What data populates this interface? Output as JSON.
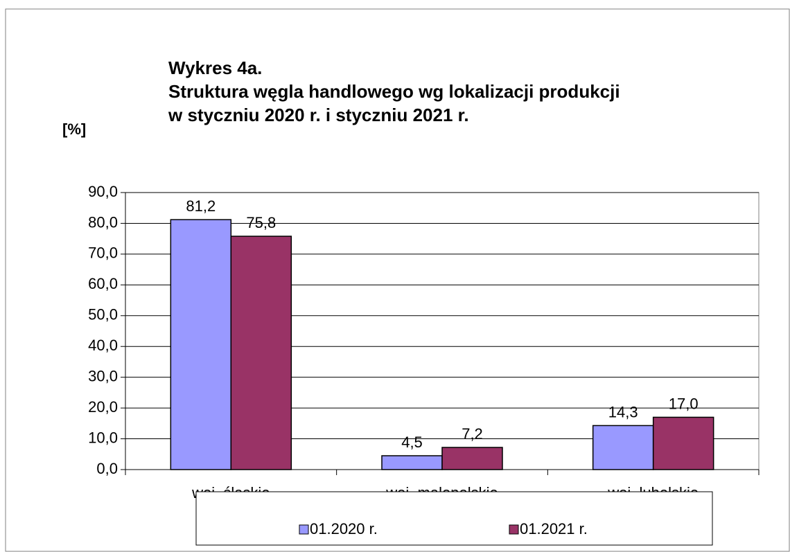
{
  "chart_data": {
    "type": "bar",
    "title": [
      "Wykres 4a.",
      "Struktura węgla handlowego wg lokalizacji produkcji",
      "w styczniu 2020 r. i styczniu 2021 r."
    ],
    "y_label": "[%]",
    "categories": [
      "woj. śląskie",
      "woj. małopolskie",
      "woj. lubelskie"
    ],
    "series": [
      {
        "name": "01.2020 r.",
        "color": "#9999ff",
        "values": [
          81.2,
          4.5,
          14.3
        ],
        "value_labels": [
          "81,2",
          "4,5",
          "14,3"
        ]
      },
      {
        "name": "01.2021 r.",
        "color": "#993366",
        "values": [
          75.8,
          7.2,
          17.0
        ],
        "value_labels": [
          "75,8",
          "7,2",
          "17,0"
        ]
      }
    ],
    "ylim": [
      0,
      90
    ],
    "yticks": [
      {
        "value": 0,
        "label": "0,0"
      },
      {
        "value": 10,
        "label": "10,0"
      },
      {
        "value": 20,
        "label": "20,0"
      },
      {
        "value": 30,
        "label": "30,0"
      },
      {
        "value": 40,
        "label": "40,0"
      },
      {
        "value": 50,
        "label": "50,0"
      },
      {
        "value": 60,
        "label": "60,0"
      },
      {
        "value": 70,
        "label": "70,0"
      },
      {
        "value": 80,
        "label": "80,0"
      },
      {
        "value": 90,
        "label": "90,0"
      }
    ],
    "grid": true,
    "legend": "bottom"
  }
}
